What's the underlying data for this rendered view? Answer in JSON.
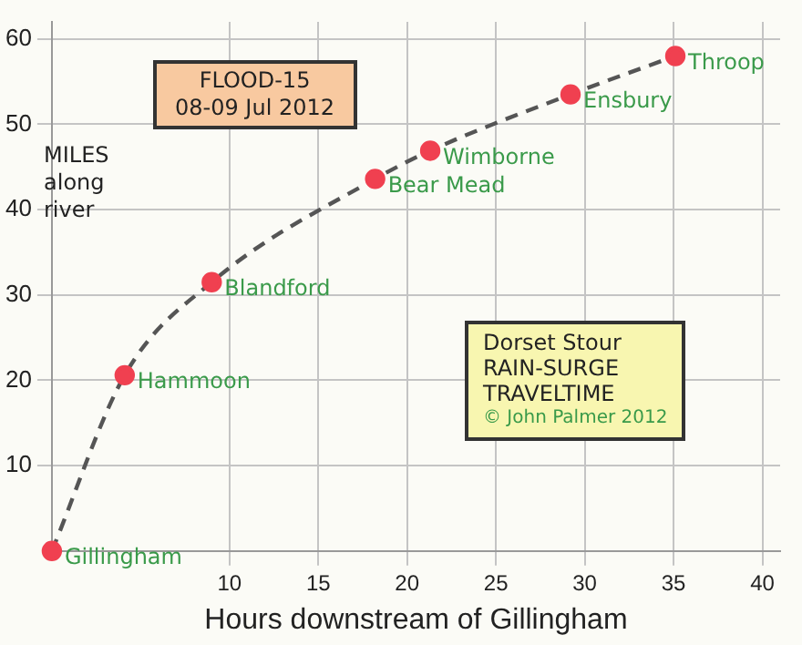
{
  "chart_data": {
    "type": "line",
    "title": "FLOOD-15",
    "subtitle": "08-09 Jul 2012",
    "xlabel": "Hours downstream of Gillingham",
    "ylabel": "MILES along river",
    "x": [
      0,
      4.1,
      9.0,
      18.2,
      21.3,
      29.2,
      35.1
    ],
    "series": [
      {
        "color": "#555555",
        "colors": [
          "#f04050",
          "#f04050",
          "#f04050",
          "#f04050",
          "#f04050",
          "#f04050",
          "#f04050"
        ],
        "values": [
          0,
          20.6,
          31.5,
          43.6,
          46.9,
          53.5,
          58.0
        ]
      }
    ],
    "marker": "circle",
    "line_style": "dashed",
    "grid": true,
    "legend": false,
    "xlim": [
      0,
      41
    ],
    "ylim": [
      0,
      62
    ],
    "xticks": [
      10,
      15,
      20,
      25,
      30,
      35,
      40
    ],
    "yticks": [
      10,
      20,
      30,
      40,
      50,
      60
    ],
    "annotations": [
      {
        "text": "Gillingham",
        "x": 0,
        "y": 0
      },
      {
        "text": "Hammoon",
        "x": 4.1,
        "y": 20.6
      },
      {
        "text": "Blandford",
        "x": 9.0,
        "y": 31.5
      },
      {
        "text": "Bear Mead",
        "x": 18.2,
        "y": 43.6
      },
      {
        "text": "Wimborne",
        "x": 21.3,
        "y": 46.9
      },
      {
        "text": "Ensbury",
        "x": 29.2,
        "y": 53.5
      },
      {
        "text": "Throop",
        "x": 35.1,
        "y": 58.0
      },
      "Dorset Stour",
      "RAIN-SURGE",
      "TRAVELTIME",
      "© John Palmer 2012"
    ]
  }
}
